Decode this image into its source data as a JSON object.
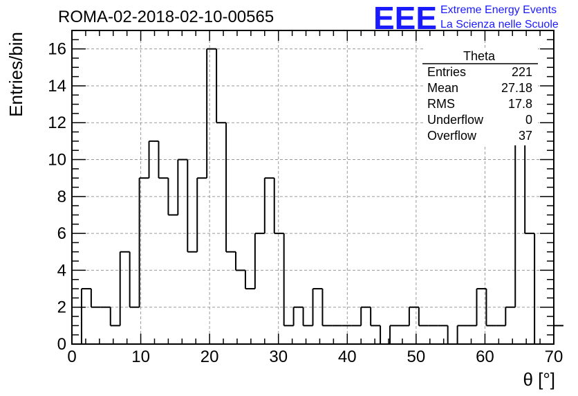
{
  "logo": {
    "acronym": "EEE",
    "line1": "Extreme Energy Events",
    "line2": "La Scienza nelle Scuole",
    "color": "#1a1aff"
  },
  "stats": {
    "title": "Theta",
    "rows": [
      {
        "label": "Entries",
        "value": "221"
      },
      {
        "label": "Mean",
        "value": "27.18"
      },
      {
        "label": "RMS",
        "value": "17.8"
      },
      {
        "label": "Underflow",
        "value": "0"
      },
      {
        "label": "Overflow",
        "value": "37"
      }
    ]
  },
  "chart_data": {
    "type": "histogram",
    "title": "ROMA-02-2018-02-10-00565",
    "xlabel": "θ [°]",
    "ylabel": "Entries/bin",
    "xlim": [
      0,
      70
    ],
    "ylim": [
      0,
      17
    ],
    "grid": true,
    "bin_width": 1.4,
    "bin_edges_start": 0,
    "values": [
      0,
      3,
      2,
      2,
      1,
      5,
      2,
      9,
      11,
      9,
      7,
      10,
      5,
      9,
      16,
      12,
      5,
      4,
      3,
      6,
      9,
      6,
      1,
      2,
      1,
      3,
      1,
      1,
      1,
      1,
      2,
      1,
      0,
      1,
      1,
      2,
      1,
      1,
      1,
      0,
      1,
      1,
      3,
      1,
      1,
      2,
      11,
      6,
      0,
      0,
      1
    ],
    "x_ticks": [
      "0",
      "10",
      "20",
      "30",
      "40",
      "50",
      "60",
      "70"
    ],
    "y_ticks": [
      "0",
      "2",
      "4",
      "6",
      "8",
      "10",
      "12",
      "14",
      "16"
    ]
  }
}
